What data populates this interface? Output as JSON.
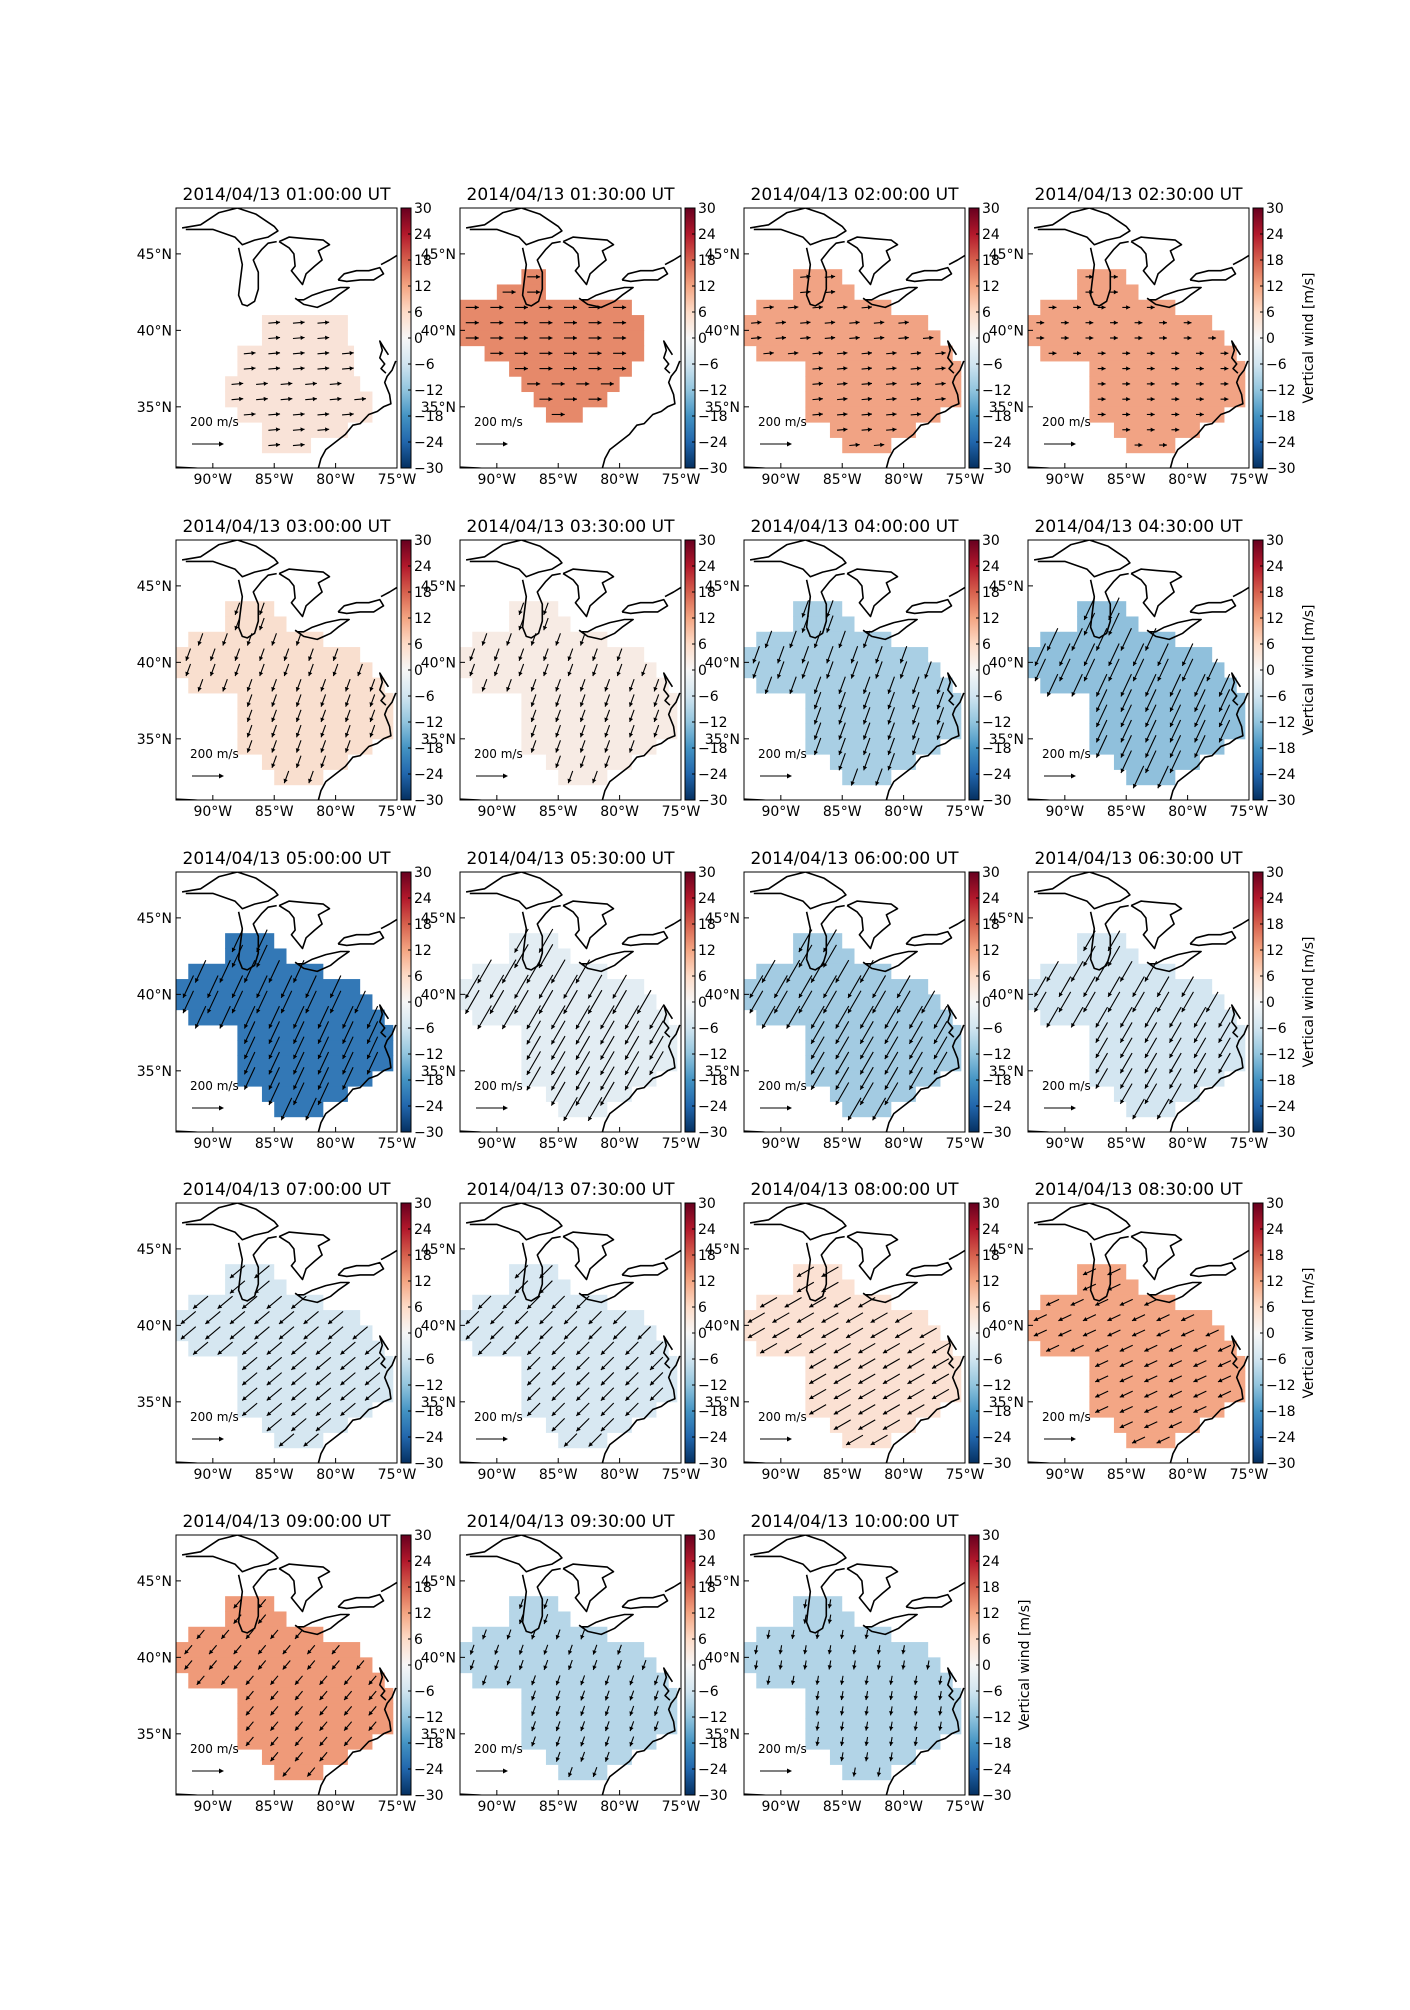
{
  "figure": {
    "colorbar_ticks": [
      "30",
      "24",
      "18",
      "12",
      "6",
      "0",
      "−6",
      "−12",
      "−18",
      "−24",
      "−30"
    ],
    "colorbar_label": "Vertical wind [m/s]",
    "colorbar_range": [
      -30,
      30
    ],
    "lon_ticks": [
      "90°W",
      "85°W",
      "80°W",
      "75°W"
    ],
    "lat_ticks": [
      "45°N",
      "40°N",
      "35°N"
    ],
    "map_extent": {
      "lon": [
        -93,
        -75
      ],
      "lat": [
        31,
        48
      ]
    },
    "scale_arrow_label": "200 m/s",
    "scale_arrow_value": 200,
    "scale_arrow_unit": "m/s"
  },
  "panels": [
    {
      "title": "2014/04/13 01:00:00 UT",
      "vertical_wind": 4,
      "color": "#f9e3d8",
      "region": "south",
      "arrow_dir_deg": 85,
      "arrow_len": 0.45,
      "cb_label_shown": false
    },
    {
      "title": "2014/04/13 01:30:00 UT",
      "vertical_wind": 20,
      "color": "#e6896a",
      "region": "north",
      "arrow_dir_deg": 90,
      "arrow_len": 0.5,
      "cb_label_shown": false
    },
    {
      "title": "2014/04/13 02:00:00 UT",
      "vertical_wind": 17,
      "color": "#f1a384",
      "region": "full",
      "arrow_dir_deg": 85,
      "arrow_len": 0.4,
      "cb_label_shown": false
    },
    {
      "title": "2014/04/13 02:30:00 UT",
      "vertical_wind": 17,
      "color": "#f1a384",
      "region": "full",
      "arrow_dir_deg": 90,
      "arrow_len": 0.3,
      "cb_label_shown": true
    },
    {
      "title": "2014/04/13 03:00:00 UT",
      "vertical_wind": 6,
      "color": "#f9dfcf",
      "region": "full",
      "arrow_dir_deg": 200,
      "arrow_len": 0.5,
      "cb_label_shown": false
    },
    {
      "title": "2014/04/13 03:30:00 UT",
      "vertical_wind": 3,
      "color": "#f7ebe4",
      "region": "full",
      "arrow_dir_deg": 200,
      "arrow_len": 0.5,
      "cb_label_shown": false
    },
    {
      "title": "2014/04/13 04:00:00 UT",
      "vertical_wind": -14,
      "color": "#a9cfe4",
      "region": "full",
      "arrow_dir_deg": 200,
      "arrow_len": 0.7,
      "cb_label_shown": false
    },
    {
      "title": "2014/04/13 04:30:00 UT",
      "vertical_wind": -15,
      "color": "#90c0dc",
      "region": "full",
      "arrow_dir_deg": 205,
      "arrow_len": 0.95,
      "cb_label_shown": true
    },
    {
      "title": "2014/04/13 05:00:00 UT",
      "vertical_wind": -26,
      "color": "#3378b6",
      "region": "full",
      "arrow_dir_deg": 205,
      "arrow_len": 0.95,
      "cb_label_shown": false
    },
    {
      "title": "2014/04/13 05:30:00 UT",
      "vertical_wind": -5,
      "color": "#e3edf3",
      "region": "full",
      "arrow_dir_deg": 210,
      "arrow_len": 1.05,
      "cb_label_shown": false
    },
    {
      "title": "2014/04/13 06:00:00 UT",
      "vertical_wind": -14,
      "color": "#a3cbe2",
      "region": "full",
      "arrow_dir_deg": 210,
      "arrow_len": 1.0,
      "cb_label_shown": false
    },
    {
      "title": "2014/04/13 06:30:00 UT",
      "vertical_wind": -7,
      "color": "#d4e6f1",
      "region": "full",
      "arrow_dir_deg": 210,
      "arrow_len": 0.9,
      "cb_label_shown": true
    },
    {
      "title": "2014/04/13 07:00:00 UT",
      "vertical_wind": -7,
      "color": "#d6e7f1",
      "region": "full",
      "arrow_dir_deg": 230,
      "arrow_len": 0.75,
      "cb_label_shown": false
    },
    {
      "title": "2014/04/13 07:30:00 UT",
      "vertical_wind": -7,
      "color": "#d8e8f2",
      "region": "full",
      "arrow_dir_deg": 225,
      "arrow_len": 0.7,
      "cb_label_shown": false
    },
    {
      "title": "2014/04/13 08:00:00 UT",
      "vertical_wind": 6,
      "color": "#fbe1d3",
      "region": "full",
      "arrow_dir_deg": 240,
      "arrow_len": 0.75,
      "cb_label_shown": false
    },
    {
      "title": "2014/04/13 08:30:00 UT",
      "vertical_wind": 17,
      "color": "#f3a685",
      "region": "full",
      "arrow_dir_deg": 245,
      "arrow_len": 0.55,
      "cb_label_shown": true
    },
    {
      "title": "2014/04/13 09:00:00 UT",
      "vertical_wind": 19,
      "color": "#ef9a79",
      "region": "full",
      "arrow_dir_deg": 220,
      "arrow_len": 0.45,
      "cb_label_shown": false
    },
    {
      "title": "2014/04/13 09:30:00 UT",
      "vertical_wind": -11,
      "color": "#b6d6e8",
      "region": "full",
      "arrow_dir_deg": 200,
      "arrow_len": 0.4,
      "cb_label_shown": false
    },
    {
      "title": "2014/04/13 10:00:00 UT",
      "vertical_wind": -11,
      "color": "#b2d4e7",
      "region": "full",
      "arrow_dir_deg": 190,
      "arrow_len": 0.35,
      "cb_label_shown": true
    }
  ]
}
